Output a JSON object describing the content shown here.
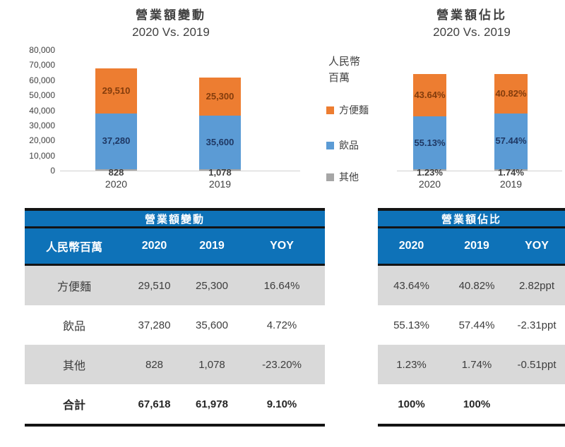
{
  "colors": {
    "noodles_orange": "#ED7D31",
    "drinks_blue": "#5B9BD5",
    "others_gray": "#A6A6A6",
    "noodles_label": "#833C0C",
    "drinks_label": "#1F3864",
    "table_header_blue": "#0E72B8",
    "row_stripe_gray": "#D9D9D9",
    "border_black": "#141414",
    "text_dark": "#404040"
  },
  "legend": {
    "unit_line1": "人民幣",
    "unit_line2": "百萬",
    "items": [
      {
        "name": "noodles-swatch",
        "label": "方便麵",
        "color": "#ED7D31"
      },
      {
        "name": "drinks-swatch",
        "label": "飲品",
        "color": "#5B9BD5"
      },
      {
        "name": "others-swatch",
        "label": "其他",
        "color": "#A6A6A6"
      }
    ]
  },
  "chart_data": [
    {
      "type": "bar",
      "stacked": true,
      "title": "營業額變動",
      "subtitle": "2020 Vs. 2019",
      "unit": "人民幣百萬",
      "categories": [
        "2020",
        "2019"
      ],
      "series": [
        {
          "name": "方便麵",
          "values": [
            29510,
            25300
          ],
          "labels": [
            "29,510",
            "25,300"
          ],
          "color": "#ED7D31",
          "label_color": "#833C0C"
        },
        {
          "name": "飲品",
          "values": [
            37280,
            35600
          ],
          "labels": [
            "37,280",
            "35,600"
          ],
          "color": "#5B9BD5",
          "label_color": "#1F3864"
        },
        {
          "name": "其他",
          "values": [
            828,
            1078
          ],
          "labels": [
            "828",
            "1,078"
          ],
          "color": "#A6A6A6",
          "label_color": "#404040"
        }
      ],
      "ylim": [
        0,
        80000
      ],
      "y_ticks": [
        "80,000",
        "70,000",
        "60,000",
        "50,000",
        "40,000",
        "30,000",
        "20,000",
        "10,000",
        "0"
      ],
      "grid": false,
      "legend_position": "right"
    },
    {
      "type": "bar",
      "stacked": true,
      "percent": true,
      "title": "營業額佔比",
      "subtitle": "2020 Vs. 2019",
      "categories": [
        "2020",
        "2019"
      ],
      "series": [
        {
          "name": "方便麵",
          "values": [
            43.64,
            40.82
          ],
          "labels": [
            "43.64%",
            "40.82%"
          ],
          "color": "#ED7D31",
          "label_color": "#833C0C"
        },
        {
          "name": "飲品",
          "values": [
            55.13,
            57.44
          ],
          "labels": [
            "55.13%",
            "57.44%"
          ],
          "color": "#5B9BD5",
          "label_color": "#1F3864"
        },
        {
          "name": "其他",
          "values": [
            1.23,
            1.74
          ],
          "labels": [
            "1.23%",
            "1.74%"
          ],
          "color": "#A6A6A6",
          "label_color": "#404040"
        }
      ],
      "ylim": [
        0,
        100
      ],
      "grid": false
    }
  ],
  "tables": {
    "left": {
      "title": "營業額變動",
      "columns": [
        "人民幣百萬",
        "2020",
        "2019",
        "YOY"
      ],
      "rows": [
        [
          "方便麵",
          "29,510",
          "25,300",
          "16.64%"
        ],
        [
          "飲品",
          "37,280",
          "35,600",
          "4.72%"
        ],
        [
          "其他",
          "828",
          "1,078",
          "-23.20%"
        ],
        [
          "合計",
          "67,618",
          "61,978",
          "9.10%"
        ]
      ]
    },
    "right": {
      "title": "營業額佔比",
      "columns": [
        "2020",
        "2019",
        "YOY"
      ],
      "rows": [
        [
          "43.64%",
          "40.82%",
          "2.82ppt"
        ],
        [
          "55.13%",
          "57.44%",
          "-2.31ppt"
        ],
        [
          "1.23%",
          "1.74%",
          "-0.51ppt"
        ],
        [
          "100%",
          "100%",
          ""
        ]
      ]
    }
  }
}
